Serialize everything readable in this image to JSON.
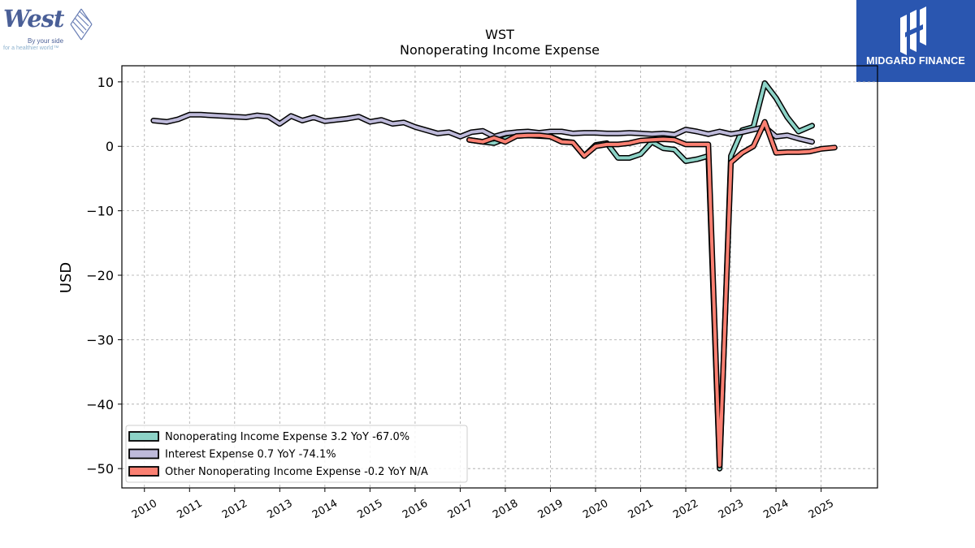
{
  "logos": {
    "west": {
      "word": "West",
      "tagline_1": "By your side",
      "tagline_2": "for a healthier world™",
      "color": "#4a5f97"
    },
    "midgard": {
      "text": "MIDGARD FINANCE",
      "background": "#2a56b0"
    }
  },
  "chart_data": {
    "type": "line",
    "title": "WST",
    "subtitle": "Nonoperating Income Expense",
    "xlabel": "",
    "ylabel": "USD",
    "xlim": [
      2009.5,
      2026.25
    ],
    "ylim": [
      -53,
      12.5
    ],
    "x_ticks": [
      "2010",
      "2011",
      "2012",
      "2013",
      "2014",
      "2015",
      "2016",
      "2017",
      "2018",
      "2019",
      "2020",
      "2021",
      "2022",
      "2023",
      "2024",
      "2025"
    ],
    "y_ticks": [
      10,
      0,
      -10,
      -20,
      -30,
      -40,
      -50
    ],
    "y_tick_labels": [
      "10",
      "0",
      "−10",
      "−20",
      "−30",
      "−40",
      "−50"
    ],
    "grid": true,
    "legend_position": "bottom-left",
    "legend": [
      "Nonoperating Income Expense  3.2 YoY -67.0%",
      "Interest Expense  0.7 YoY -74.1%",
      "Other Nonoperating Income Expense  -0.2 YoY N/A"
    ],
    "series": [
      {
        "name": "Nonoperating Income Expense",
        "color": "#8dd3c7",
        "x": [
          2017.2,
          2017.5,
          2017.75,
          2018.0,
          2018.25,
          2018.5,
          2018.75,
          2019.0,
          2019.25,
          2019.5,
          2019.75,
          2020.0,
          2020.25,
          2020.5,
          2020.75,
          2021.0,
          2021.25,
          2021.5,
          2021.75,
          2022.0,
          2022.25,
          2022.5,
          2022.75,
          2023.0,
          2023.25,
          2023.5,
          2023.75,
          2024.0,
          2024.25,
          2024.5,
          2024.8
        ],
        "y": [
          1.0,
          0.7,
          0.5,
          1.2,
          1.6,
          1.7,
          1.6,
          1.5,
          0.8,
          0.6,
          -1.5,
          0.2,
          0.5,
          -1.8,
          -1.8,
          -1.2,
          0.7,
          -0.3,
          -0.5,
          -2.3,
          -2.0,
          -1.5,
          -50.0,
          -1.5,
          2.5,
          3.0,
          9.8,
          7.5,
          4.5,
          2.3,
          3.2
        ]
      },
      {
        "name": "Interest Expense",
        "color": "#bebada",
        "x": [
          2010.2,
          2010.5,
          2010.75,
          2011.0,
          2011.25,
          2011.5,
          2011.75,
          2012.0,
          2012.25,
          2012.5,
          2012.75,
          2013.0,
          2013.25,
          2013.5,
          2013.75,
          2014.0,
          2014.25,
          2014.5,
          2014.75,
          2015.0,
          2015.25,
          2015.5,
          2015.75,
          2016.0,
          2016.25,
          2016.5,
          2016.75,
          2017.0,
          2017.25,
          2017.5,
          2017.75,
          2018.0,
          2018.25,
          2018.5,
          2018.75,
          2019.0,
          2019.25,
          2019.5,
          2019.75,
          2020.0,
          2020.25,
          2020.5,
          2020.75,
          2021.0,
          2021.25,
          2021.5,
          2021.75,
          2022.0,
          2022.25,
          2022.5,
          2022.75,
          2023.0,
          2023.25,
          2023.5,
          2023.75,
          2024.0,
          2024.25,
          2024.5,
          2024.8
        ],
        "y": [
          4.0,
          3.8,
          4.2,
          4.9,
          4.9,
          4.8,
          4.7,
          4.6,
          4.5,
          4.8,
          4.6,
          3.5,
          4.7,
          4.0,
          4.5,
          3.9,
          4.1,
          4.3,
          4.6,
          3.8,
          4.1,
          3.5,
          3.7,
          3.0,
          2.5,
          2.0,
          2.2,
          1.5,
          2.2,
          2.4,
          1.5,
          2.0,
          2.2,
          2.3,
          2.1,
          2.3,
          2.3,
          2.0,
          2.1,
          2.1,
          2.0,
          2.0,
          2.1,
          2.0,
          1.9,
          2.0,
          1.8,
          2.6,
          2.3,
          1.9,
          2.3,
          1.9,
          2.2,
          2.6,
          3.0,
          1.5,
          1.7,
          1.2,
          0.7
        ]
      },
      {
        "name": "Other Nonoperating Income Expense",
        "color": "#fb8072",
        "x": [
          2017.2,
          2017.5,
          2017.75,
          2018.0,
          2018.25,
          2018.5,
          2018.75,
          2019.0,
          2019.25,
          2019.5,
          2019.75,
          2020.0,
          2020.25,
          2020.5,
          2020.75,
          2021.0,
          2021.25,
          2021.5,
          2021.75,
          2022.0,
          2022.25,
          2022.5,
          2022.75,
          2023.0,
          2023.25,
          2023.5,
          2023.75,
          2024.0,
          2024.25,
          2024.5,
          2024.75,
          2025.0,
          2025.3
        ],
        "y": [
          1.0,
          0.7,
          1.3,
          0.7,
          1.6,
          1.7,
          1.7,
          1.5,
          0.7,
          0.6,
          -1.5,
          0.0,
          0.3,
          0.3,
          0.5,
          0.9,
          1.0,
          1.1,
          1.0,
          0.3,
          0.3,
          0.3,
          -49.5,
          -2.5,
          -1.0,
          0.0,
          3.8,
          -1.0,
          -0.9,
          -0.9,
          -0.8,
          -0.4,
          -0.2
        ]
      }
    ]
  }
}
